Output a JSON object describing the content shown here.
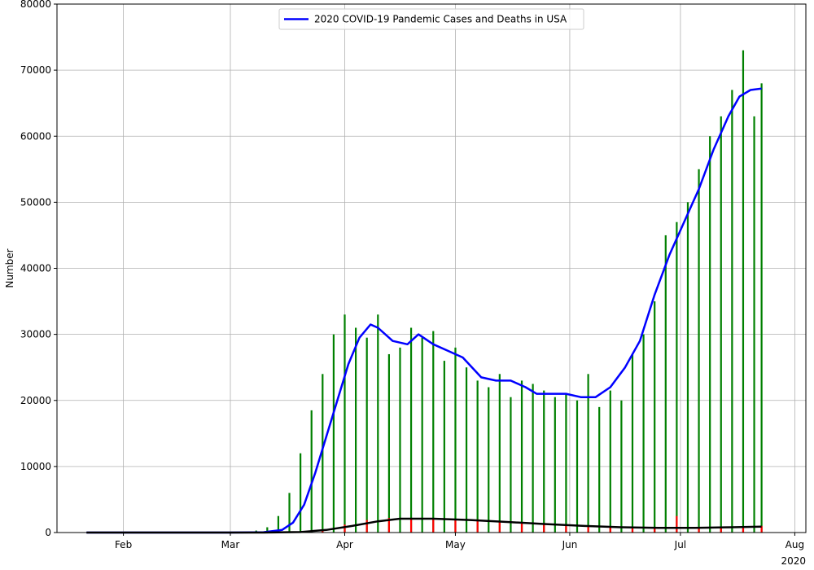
{
  "chart_data": {
    "type": "bar",
    "xlabel": "",
    "ylabel": "Number",
    "ylim": [
      0,
      80000
    ],
    "yticks": [
      0,
      10000,
      20000,
      30000,
      40000,
      50000,
      60000,
      70000,
      80000
    ],
    "xlim": [
      "2020-01-14",
      "2020-08-04"
    ],
    "xticks": [
      {
        "date": "2020-02-01",
        "label": "Feb"
      },
      {
        "date": "2020-03-01",
        "label": "Mar"
      },
      {
        "date": "2020-04-01",
        "label": "Apr"
      },
      {
        "date": "2020-05-01",
        "label": "May"
      },
      {
        "date": "2020-06-01",
        "label": "Jun"
      },
      {
        "date": "2020-07-01",
        "label": "Jul"
      },
      {
        "date": "2020-08-01",
        "label": "Aug"
      }
    ],
    "x_offset_label": "2020",
    "grid": true,
    "legend": {
      "position": "top-center",
      "entries": [
        "2020 COVID-19 Pandemic Cases and Deaths in USA"
      ]
    },
    "colors": {
      "cases": "#008000",
      "deaths": "#ff0000",
      "cases_avg": "#0000ff",
      "deaths_avg": "#000000"
    },
    "series": [
      {
        "name": "2020 COVID-19 Pandemic Cases and Deaths in USA",
        "kind": "line",
        "x": [
          "2020-01-22",
          "2020-03-01",
          "2020-03-10",
          "2020-03-15",
          "2020-03-18",
          "2020-03-21",
          "2020-03-24",
          "2020-03-27",
          "2020-03-30",
          "2020-04-02",
          "2020-04-05",
          "2020-04-08",
          "2020-04-10",
          "2020-04-14",
          "2020-04-18",
          "2020-04-21",
          "2020-04-25",
          "2020-04-29",
          "2020-05-03",
          "2020-05-08",
          "2020-05-12",
          "2020-05-16",
          "2020-05-20",
          "2020-05-23",
          "2020-05-27",
          "2020-05-31",
          "2020-06-04",
          "2020-06-08",
          "2020-06-12",
          "2020-06-16",
          "2020-06-20",
          "2020-06-24",
          "2020-06-28",
          "2020-07-02",
          "2020-07-06",
          "2020-07-10",
          "2020-07-14",
          "2020-07-17",
          "2020-07-20",
          "2020-07-23"
        ],
        "values": [
          0,
          0,
          50,
          400,
          1500,
          4200,
          9000,
          14500,
          20000,
          25500,
          29500,
          31500,
          31000,
          29000,
          28500,
          30000,
          28500,
          27500,
          26500,
          23500,
          23000,
          23000,
          22000,
          21000,
          21000,
          21000,
          20500,
          20500,
          22000,
          25000,
          29000,
          36000,
          42000,
          47000,
          52000,
          58000,
          63000,
          66000,
          67000,
          67200
        ]
      },
      {
        "name": "",
        "kind": "line",
        "x": [
          "2020-01-22",
          "2020-03-10",
          "2020-03-20",
          "2020-03-27",
          "2020-04-03",
          "2020-04-10",
          "2020-04-16",
          "2020-04-25",
          "2020-05-05",
          "2020-05-15",
          "2020-05-25",
          "2020-06-05",
          "2020-06-15",
          "2020-06-25",
          "2020-07-05",
          "2020-07-15",
          "2020-07-23"
        ],
        "values": [
          0,
          0,
          80,
          400,
          1000,
          1700,
          2100,
          2100,
          1900,
          1600,
          1300,
          1000,
          800,
          700,
          700,
          800,
          900
        ]
      },
      {
        "name": "",
        "kind": "bar",
        "x": [
          "2020-03-05",
          "2020-03-08",
          "2020-03-11",
          "2020-03-14",
          "2020-03-17",
          "2020-03-20",
          "2020-03-23",
          "2020-03-26",
          "2020-03-29",
          "2020-04-01",
          "2020-04-04",
          "2020-04-07",
          "2020-04-10",
          "2020-04-13",
          "2020-04-16",
          "2020-04-19",
          "2020-04-22",
          "2020-04-25",
          "2020-04-28",
          "2020-05-01",
          "2020-05-04",
          "2020-05-07",
          "2020-05-10",
          "2020-05-13",
          "2020-05-16",
          "2020-05-19",
          "2020-05-22",
          "2020-05-25",
          "2020-05-28",
          "2020-05-31",
          "2020-06-03",
          "2020-06-06",
          "2020-06-09",
          "2020-06-12",
          "2020-06-15",
          "2020-06-18",
          "2020-06-21",
          "2020-06-24",
          "2020-06-27",
          "2020-06-30",
          "2020-07-03",
          "2020-07-06",
          "2020-07-09",
          "2020-07-12",
          "2020-07-15",
          "2020-07-18",
          "2020-07-21",
          "2020-07-23"
        ],
        "values": [
          100,
          300,
          800,
          2500,
          6000,
          12000,
          18500,
          24000,
          30000,
          33000,
          31000,
          29500,
          33000,
          27000,
          28000,
          31000,
          29500,
          30500,
          26000,
          28000,
          25000,
          23000,
          22000,
          24000,
          20500,
          23000,
          22500,
          21500,
          20500,
          21000,
          20000,
          24000,
          19000,
          21500,
          20000,
          27000,
          30000,
          35000,
          45000,
          47000,
          50000,
          55000,
          60000,
          63000,
          67000,
          73000,
          63000,
          68000
        ]
      },
      {
        "name": "",
        "kind": "bar",
        "x": [
          "2020-03-20",
          "2020-03-26",
          "2020-04-01",
          "2020-04-07",
          "2020-04-13",
          "2020-04-19",
          "2020-04-25",
          "2020-05-01",
          "2020-05-07",
          "2020-05-13",
          "2020-05-19",
          "2020-05-25",
          "2020-05-31",
          "2020-06-06",
          "2020-06-12",
          "2020-06-18",
          "2020-06-24",
          "2020-06-30",
          "2020-07-06",
          "2020-07-12",
          "2020-07-18",
          "2020-07-23"
        ],
        "values": [
          100,
          500,
          1200,
          1900,
          2200,
          2100,
          2200,
          2000,
          2000,
          1700,
          1500,
          1200,
          1000,
          900,
          800,
          700,
          600,
          2500,
          700,
          700,
          800,
          1000
        ]
      }
    ]
  }
}
